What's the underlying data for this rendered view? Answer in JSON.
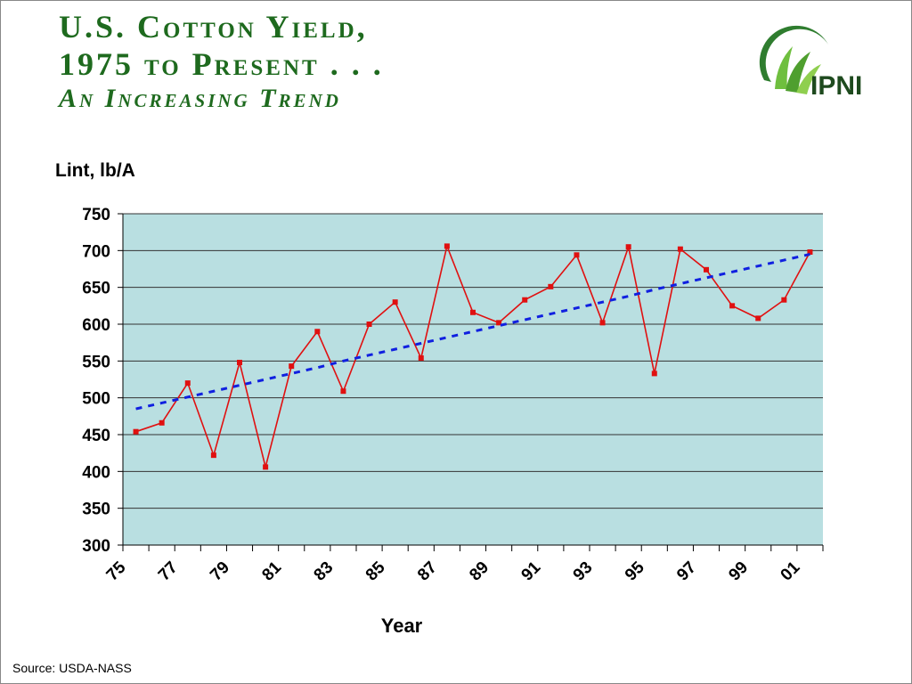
{
  "chart_data": {
    "type": "line",
    "title": "U.S. Cotton Yield,",
    "title_line2": "1975 to Present . . .",
    "subtitle": "An Increasing Trend",
    "logo": "IPNI",
    "y_label": "Lint, lb/A",
    "x_label": "Year",
    "source": "Source: USDA-NASS",
    "categories": [
      "75",
      null,
      "77",
      null,
      "79",
      null,
      "81",
      null,
      "83",
      null,
      "85",
      null,
      "87",
      null,
      "89",
      null,
      "91",
      null,
      "93",
      null,
      "95",
      null,
      "97",
      null,
      "99",
      null,
      "01"
    ],
    "series": [
      {
        "color": "#e01010",
        "style": "solid-markers",
        "values": [
          454,
          466,
          520,
          422,
          548,
          406,
          543,
          590,
          509,
          600,
          630,
          554,
          706,
          616,
          602,
          633,
          651,
          694,
          602,
          705,
          533,
          702,
          674,
          625,
          608,
          633,
          698
        ]
      },
      {
        "color": "#1020e0",
        "style": "dashed",
        "values": [
          485,
          493,
          501,
          509,
          517,
          525,
          533,
          541,
          550,
          558,
          566,
          574,
          582,
          590,
          598,
          606,
          614,
          622,
          630,
          638,
          647,
          655,
          663,
          671,
          679,
          687,
          695
        ]
      }
    ],
    "ylim": [
      300,
      750
    ],
    "yticks": [
      300,
      350,
      400,
      450,
      500,
      550,
      600,
      650,
      700,
      750
    ],
    "grid": true,
    "plot_color": "#b9dfe1"
  }
}
